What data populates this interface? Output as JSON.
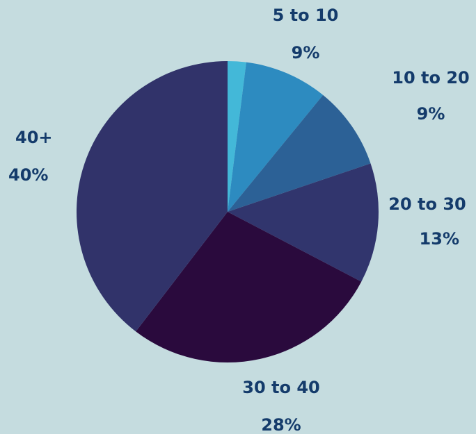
{
  "chart_data": {
    "type": "pie",
    "start_angle_deg": 0,
    "direction": "clockwise",
    "slices": [
      {
        "category": "",
        "value": 2,
        "label": "",
        "color": "#43b8d8"
      },
      {
        "category": "5 to 10",
        "value": 9,
        "label": "9%",
        "color": "#2d8bc0"
      },
      {
        "category": "10 to 20",
        "value": 9,
        "label": "9%",
        "color": "#2c6196"
      },
      {
        "category": "20 to 30",
        "value": 13,
        "label": "13%",
        "color": "#31356d"
      },
      {
        "category": "30 to 40",
        "value": 28,
        "label": "28%",
        "color": "#2a0a3d"
      },
      {
        "category": "40+",
        "value": 40,
        "label": "40%",
        "color": "#31336a"
      }
    ]
  }
}
